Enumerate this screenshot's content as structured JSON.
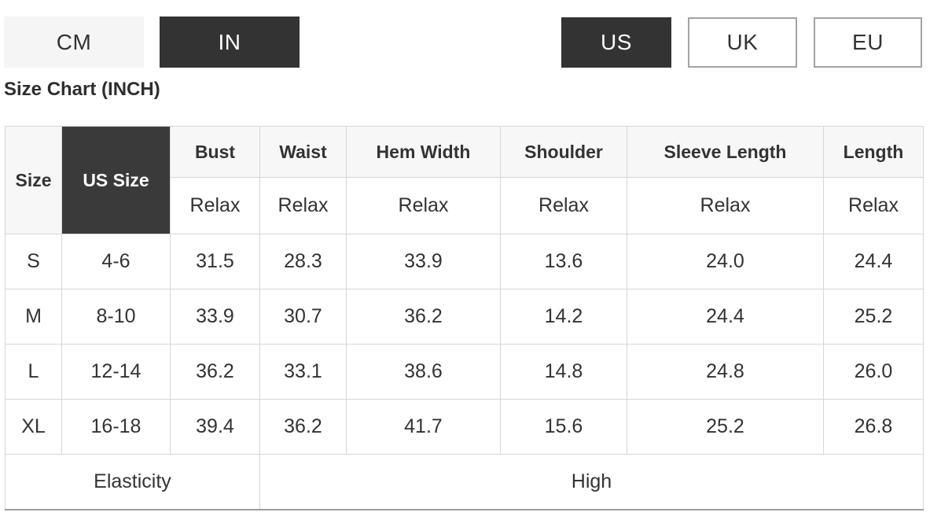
{
  "colors": {
    "dark_selected_bg": "#333333",
    "light_button_bg": "#f5f5f5",
    "header_cell_bg": "#f7f7f7",
    "dark_header_cell_bg": "#3a3a3a",
    "table_border": "#d6d6d6",
    "table_bottom_border": "#9e9e9e",
    "text": "#333333",
    "selected_text": "#ffffff"
  },
  "unit_toggle": {
    "cm_label": "CM",
    "in_label": "IN",
    "selected": "IN"
  },
  "region_toggle": {
    "us_label": "US",
    "uk_label": "UK",
    "eu_label": "EU",
    "selected": "US"
  },
  "heading": "Size Chart (INCH)",
  "size_table": {
    "size_header": "Size",
    "us_size_header": "US Size",
    "columns": [
      {
        "label": "Bust",
        "fit": "Relax"
      },
      {
        "label": "Waist",
        "fit": "Relax"
      },
      {
        "label": "Hem Width",
        "fit": "Relax"
      },
      {
        "label": "Shoulder",
        "fit": "Relax"
      },
      {
        "label": "Sleeve Length",
        "fit": "Relax"
      },
      {
        "label": "Length",
        "fit": "Relax"
      }
    ],
    "rows": [
      {
        "size": "S",
        "us_size": "4-6",
        "values": [
          "31.5",
          "28.3",
          "33.9",
          "13.6",
          "24.0",
          "24.4"
        ]
      },
      {
        "size": "M",
        "us_size": "8-10",
        "values": [
          "33.9",
          "30.7",
          "36.2",
          "14.2",
          "24.4",
          "25.2"
        ]
      },
      {
        "size": "L",
        "us_size": "12-14",
        "values": [
          "36.2",
          "33.1",
          "38.6",
          "14.8",
          "24.8",
          "26.0"
        ]
      },
      {
        "size": "XL",
        "us_size": "16-18",
        "values": [
          "39.4",
          "36.2",
          "41.7",
          "15.6",
          "25.2",
          "26.8"
        ]
      }
    ],
    "footer": {
      "label": "Elasticity",
      "value": "High"
    }
  }
}
